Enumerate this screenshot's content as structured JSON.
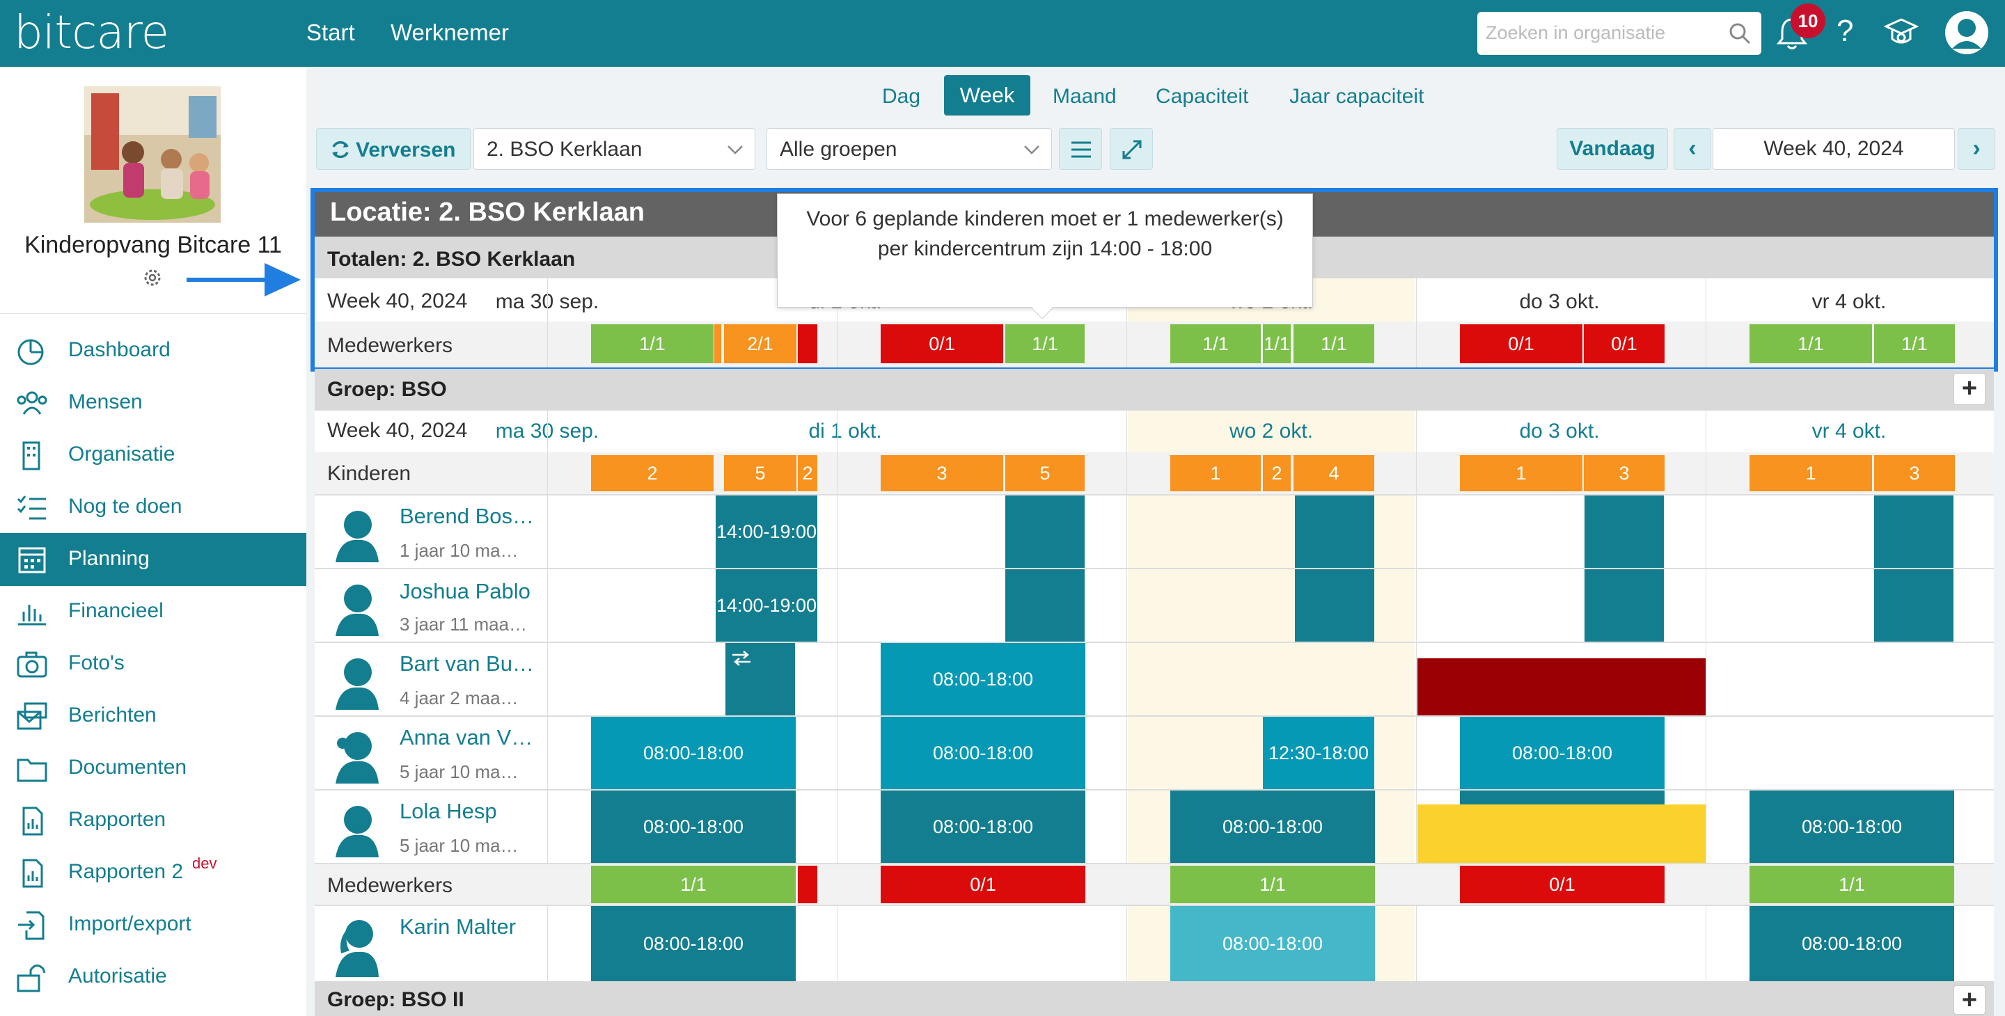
{
  "brand": {
    "logo": "bitcare",
    "accent": "#137e8f"
  },
  "topnav": {
    "start": "Start",
    "werknemer": "Werknemer"
  },
  "search": {
    "placeholder": "Zoeken in organisatie"
  },
  "notifications": {
    "count": "10"
  },
  "help": {
    "label": "?"
  },
  "org": {
    "name": "Kinderopvang Bitcare 11"
  },
  "sidebar": {
    "items": [
      {
        "label": "Dashboard",
        "icon": "dashboard-icon"
      },
      {
        "label": "Mensen",
        "icon": "people-icon"
      },
      {
        "label": "Organisatie",
        "icon": "building-icon"
      },
      {
        "label": "Nog te doen",
        "icon": "checklist-icon"
      },
      {
        "label": "Planning",
        "icon": "calendar-icon"
      },
      {
        "label": "Financieel",
        "icon": "bar-chart-icon"
      },
      {
        "label": "Foto's",
        "icon": "camera-icon"
      },
      {
        "label": "Berichten",
        "icon": "messages-icon"
      },
      {
        "label": "Documenten",
        "icon": "folder-icon"
      },
      {
        "label": "Rapporten",
        "icon": "report-icon"
      },
      {
        "label": "Rapporten 2",
        "icon": "report-icon",
        "sup": "dev"
      },
      {
        "label": "Import/export",
        "icon": "import-export-icon"
      },
      {
        "label": "Autorisatie",
        "icon": "lock-icon"
      }
    ]
  },
  "views": {
    "dag": "Dag",
    "week": "Week",
    "maand": "Maand",
    "capaciteit": "Capaciteit",
    "jaar": "Jaar capaciteit"
  },
  "toolbar": {
    "refresh": "Verversen",
    "location": "2. BSO Kerklaan",
    "groups": "Alle groepen",
    "today": "Vandaag",
    "week": "Week 40, 2024"
  },
  "location": {
    "title": "Locatie: 2. BSO Kerklaan",
    "totals": "Totalen: 2. BSO Kerklaan"
  },
  "tooltip": "Voor 6 geplande kinderen moet er 1 medewerker(s) per kindercentrum zijn 14:00 - 18:00",
  "week_label": "Week 40, 2024",
  "days": [
    "ma 30 sep.",
    "di 1 okt.",
    "wo 2 okt.",
    "do 3 okt.",
    "vr 4 okt."
  ],
  "labels": {
    "medewerkers": "Medewerkers",
    "kinderen": "Kinderen"
  },
  "totals_staff": [
    "1/1",
    "2/1",
    "0/1",
    "1/1",
    "1/1",
    "1/1",
    "1/1",
    "0/1",
    "0/1",
    "1/1",
    "1/1"
  ],
  "group_bso": {
    "title": "Groep: BSO",
    "kids_counts": [
      "2",
      "5",
      "2",
      "3",
      "5",
      "1",
      "2",
      "4",
      "1",
      "3",
      "1",
      "3"
    ],
    "staff": [
      "1/1",
      "0/1",
      "1/1",
      "0/1",
      "1/1"
    ]
  },
  "group_bso2": {
    "title": "Groep: BSO II"
  },
  "children": [
    {
      "name": "Berend Bos…",
      "age": "1 jaar 10 ma…",
      "times": [
        "14:00-19:00"
      ]
    },
    {
      "name": "Joshua Pablo",
      "age": "3 jaar 11 maa…",
      "times": [
        "14:00-19:00"
      ]
    },
    {
      "name": "Bart van Bu…",
      "age": "4 jaar 2 maa…",
      "times": [
        "08:00-18:00"
      ]
    },
    {
      "name": "Anna van V…",
      "age": "5 jaar 10 ma…",
      "times": [
        "08:00-18:00",
        "08:00-18:00",
        "12:30-18:00",
        "08:00-18:00"
      ]
    },
    {
      "name": "Lola Hesp",
      "age": "5 jaar 10 ma…",
      "times": [
        "08:00-18:00",
        "08:00-18:00",
        "08:00-18:00",
        "08:00-18:00"
      ]
    }
  ],
  "employees": [
    {
      "name": "Karin Malter",
      "times": [
        "08:00-18:00",
        "08:00-18:00",
        "08:00-18:00"
      ]
    }
  ]
}
